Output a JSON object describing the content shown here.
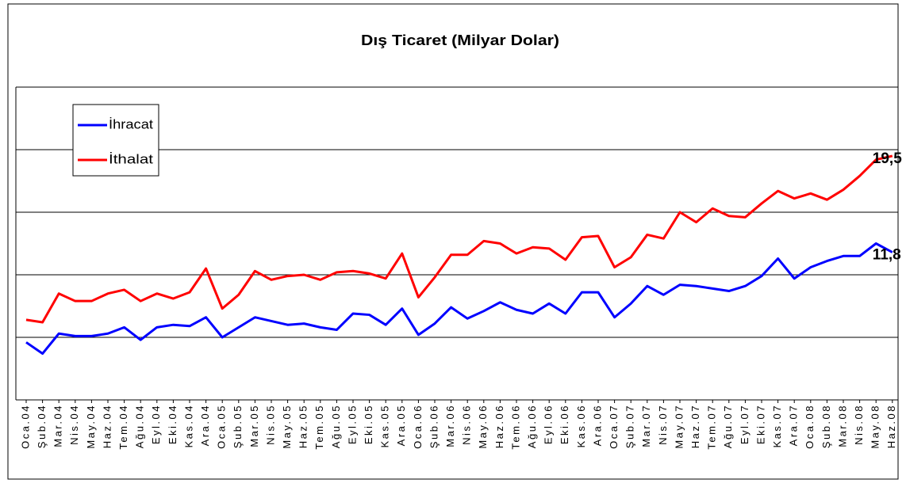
{
  "chart_data": {
    "type": "line",
    "title": "Dış Ticaret (Milyar Dolar)",
    "categories": [
      "Oca.04",
      "Şub.04",
      "Mar.04",
      "Nis.04",
      "May.04",
      "Haz.04",
      "Tem.04",
      "Ağu.04",
      "Eyl.04",
      "Eki.04",
      "Kas.04",
      "Ara.04",
      "Oca.05",
      "Şub.05",
      "Mar.05",
      "Nis.05",
      "May.05",
      "Haz.05",
      "Tem.05",
      "Ağu.05",
      "Eyl.05",
      "Eki.05",
      "Kas.05",
      "Ara.05",
      "Oca.06",
      "Şub.06",
      "Mar.06",
      "Nis.06",
      "May.06",
      "Haz.06",
      "Tem.06",
      "Ağu.06",
      "Eyl.06",
      "Eki.06",
      "Kas.06",
      "Ara.06",
      "Oca.07",
      "Şub.07",
      "Mar.07",
      "Nis.07",
      "May.07",
      "Haz.07",
      "Tem.07",
      "Ağu.07",
      "Eyl.07",
      "Eki.07",
      "Kas.07",
      "Ara.07",
      "Oca.08",
      "Şub.08",
      "Mar.08",
      "Nis.08",
      "May.08",
      "Haz.08"
    ],
    "series": [
      {
        "name": "İhracat",
        "color": "#0000ff",
        "values": [
          4.6,
          3.7,
          5.3,
          5.1,
          5.1,
          5.3,
          5.8,
          4.8,
          5.8,
          6.0,
          5.9,
          6.6,
          5.0,
          5.8,
          6.6,
          6.3,
          6.0,
          6.1,
          5.8,
          5.6,
          6.9,
          6.8,
          6.0,
          7.3,
          5.2,
          6.1,
          7.4,
          6.5,
          7.1,
          7.8,
          7.2,
          6.9,
          7.7,
          6.9,
          8.6,
          8.6,
          6.6,
          7.7,
          9.1,
          8.4,
          9.2,
          9.1,
          8.9,
          8.7,
          9.1,
          9.9,
          11.3,
          9.7,
          10.6,
          11.1,
          11.5,
          11.5,
          12.5,
          11.8
        ],
        "value_labels": [
          null,
          null,
          null,
          null,
          null,
          null,
          null,
          null,
          null,
          null,
          null,
          null,
          null,
          null,
          null,
          null,
          null,
          null,
          null,
          null,
          null,
          null,
          null,
          null,
          null,
          null,
          null,
          null,
          null,
          null,
          null,
          null,
          null,
          null,
          null,
          null,
          null,
          null,
          null,
          null,
          null,
          null,
          null,
          null,
          null,
          null,
          null,
          null,
          null,
          null,
          null,
          null,
          null,
          "11,8"
        ]
      },
      {
        "name": "İthalat",
        "color": "#ff0000",
        "values": [
          6.4,
          6.2,
          8.5,
          7.9,
          7.9,
          8.5,
          8.8,
          7.9,
          8.5,
          8.1,
          8.6,
          10.5,
          7.3,
          8.4,
          10.3,
          9.6,
          9.9,
          10.0,
          9.6,
          10.2,
          10.3,
          10.1,
          9.7,
          11.7,
          8.2,
          9.8,
          11.6,
          11.6,
          12.7,
          12.5,
          11.7,
          12.2,
          12.1,
          11.2,
          13.0,
          13.1,
          10.6,
          11.4,
          13.2,
          12.9,
          15.0,
          14.2,
          15.3,
          14.7,
          14.6,
          15.7,
          16.7,
          16.1,
          16.5,
          16.0,
          16.8,
          17.9,
          19.2,
          19.5
        ],
        "value_labels": [
          null,
          null,
          null,
          null,
          null,
          null,
          null,
          null,
          null,
          null,
          null,
          null,
          null,
          null,
          null,
          null,
          null,
          null,
          null,
          null,
          null,
          null,
          null,
          null,
          null,
          null,
          null,
          null,
          null,
          null,
          null,
          null,
          null,
          null,
          null,
          null,
          null,
          null,
          null,
          null,
          null,
          null,
          null,
          null,
          null,
          null,
          null,
          null,
          null,
          null,
          null,
          null,
          null,
          "19,5"
        ]
      }
    ],
    "ylim": [
      0,
      25
    ],
    "yticks": [
      0,
      5,
      10,
      15,
      20,
      25
    ],
    "grid": true,
    "legend": "upper left"
  }
}
